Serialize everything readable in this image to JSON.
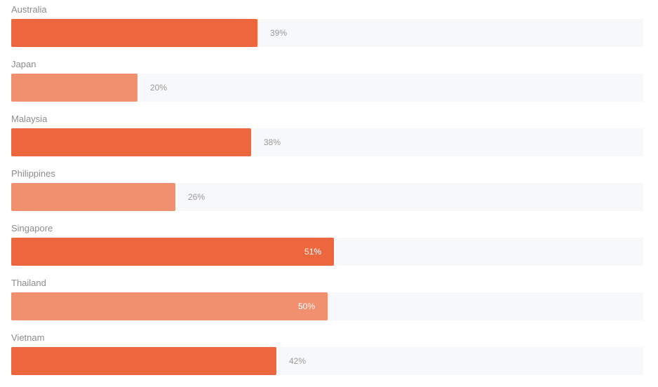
{
  "chart_data": {
    "type": "bar",
    "orientation": "horizontal",
    "categories": [
      "Australia",
      "Japan",
      "Malaysia",
      "Philippines",
      "Singapore",
      "Thailand",
      "Vietnam"
    ],
    "values": [
      39,
      20,
      38,
      26,
      51,
      50,
      42
    ],
    "value_labels": [
      "39%",
      "20%",
      "38%",
      "26%",
      "51%",
      "50%",
      "42%"
    ],
    "xlim": [
      0,
      100
    ],
    "grid": false,
    "legend": "none",
    "colors": {
      "primary": "#ec673e",
      "secondary": "#f0906e",
      "track": "#f7f8fa",
      "label": "#8c8c8c"
    }
  }
}
